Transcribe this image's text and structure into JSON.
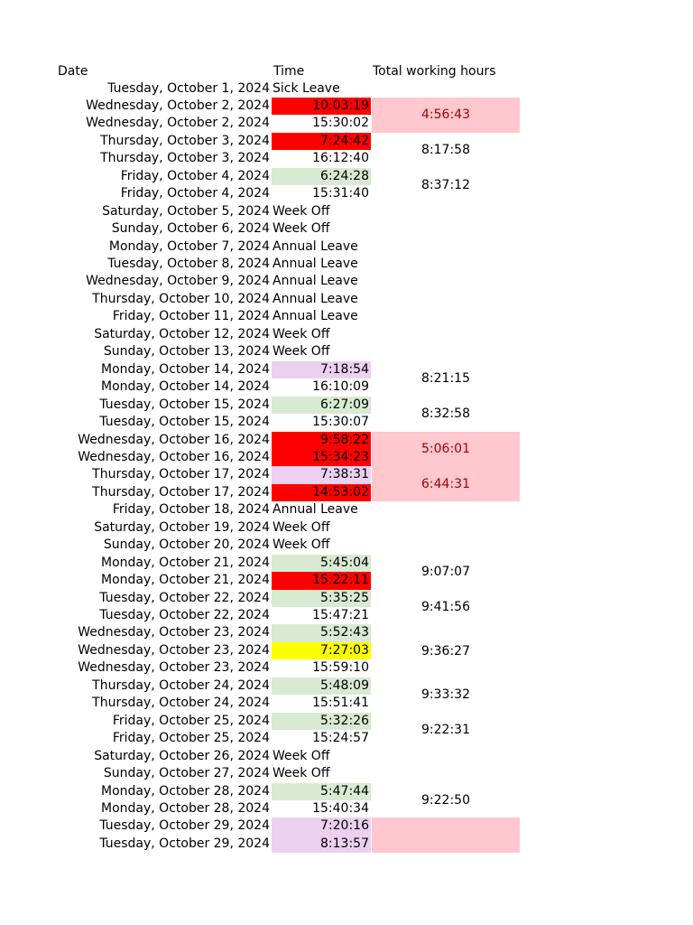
{
  "headers": {
    "date": "Date",
    "time": "Time",
    "total": "Total working hours"
  },
  "colors": {
    "red": "#ff0000",
    "green": "#d9ead3",
    "lavender": "#ecd0ef",
    "yellow": "#ffff00",
    "pink": "#ffc7ce",
    "dark_red_text": "#9c0006"
  },
  "rows": [
    {
      "date": "Tuesday, October 1, 2024",
      "time": "Sick Leave",
      "kind": "txt"
    },
    {
      "date": "Wednesday, October 2, 2024",
      "time": "10:03:19",
      "kind": "num",
      "fill": "red"
    },
    {
      "date": "Wednesday, October 2, 2024",
      "time": "15:30:02",
      "kind": "num"
    },
    {
      "date": "Thursday, October 3, 2024",
      "time": "7:24:42",
      "kind": "num",
      "fill": "red"
    },
    {
      "date": "Thursday, October 3, 2024",
      "time": "16:12:40",
      "kind": "num"
    },
    {
      "date": "Friday, October 4, 2024",
      "time": "6:24:28",
      "kind": "num",
      "fill": "green"
    },
    {
      "date": "Friday, October 4, 2024",
      "time": "15:31:40",
      "kind": "num"
    },
    {
      "date": "Saturday, October 5, 2024",
      "time": "Week Off",
      "kind": "txt"
    },
    {
      "date": "Sunday, October 6, 2024",
      "time": "Week Off",
      "kind": "txt"
    },
    {
      "date": "Monday, October 7, 2024",
      "time": "Annual Leave",
      "kind": "txt"
    },
    {
      "date": "Tuesday, October 8, 2024",
      "time": "Annual Leave",
      "kind": "txt"
    },
    {
      "date": "Wednesday, October 9, 2024",
      "time": "Annual Leave",
      "kind": "txt"
    },
    {
      "date": "Thursday, October 10, 2024",
      "time": "Annual Leave",
      "kind": "txt"
    },
    {
      "date": "Friday, October 11, 2024",
      "time": "Annual Leave",
      "kind": "txt"
    },
    {
      "date": "Saturday, October 12, 2024",
      "time": "Week Off",
      "kind": "txt"
    },
    {
      "date": "Sunday, October 13, 2024",
      "time": "Week Off",
      "kind": "txt"
    },
    {
      "date": "Monday, October 14, 2024",
      "time": "7:18:54",
      "kind": "num",
      "fill": "lavender"
    },
    {
      "date": "Monday, October 14, 2024",
      "time": "16:10:09",
      "kind": "num"
    },
    {
      "date": "Tuesday, October 15, 2024",
      "time": "6:27:09",
      "kind": "num",
      "fill": "green"
    },
    {
      "date": "Tuesday, October 15, 2024",
      "time": "15:30:07",
      "kind": "num"
    },
    {
      "date": "Wednesday, October 16, 2024",
      "time": "9:58:22",
      "kind": "num",
      "fill": "red"
    },
    {
      "date": "Wednesday, October 16, 2024",
      "time": "15:34:23",
      "kind": "num",
      "fill": "red"
    },
    {
      "date": "Thursday, October 17, 2024",
      "time": "7:38:31",
      "kind": "num",
      "fill": "lavender"
    },
    {
      "date": "Thursday, October 17, 2024",
      "time": "14:53:02",
      "kind": "num",
      "fill": "red"
    },
    {
      "date": "Friday, October 18, 2024",
      "time": "Annual Leave",
      "kind": "txt"
    },
    {
      "date": "Saturday, October 19, 2024",
      "time": "Week Off",
      "kind": "txt"
    },
    {
      "date": "Sunday, October 20, 2024",
      "time": "Week Off",
      "kind": "txt"
    },
    {
      "date": "Monday, October 21, 2024",
      "time": "5:45:04",
      "kind": "num",
      "fill": "green"
    },
    {
      "date": "Monday, October 21, 2024",
      "time": "15:22:11",
      "kind": "num",
      "fill": "red"
    },
    {
      "date": "Tuesday, October 22, 2024",
      "time": "5:35:25",
      "kind": "num",
      "fill": "green"
    },
    {
      "date": "Tuesday, October 22, 2024",
      "time": "15:47:21",
      "kind": "num"
    },
    {
      "date": "Wednesday, October 23, 2024",
      "time": "5:52:43",
      "kind": "num",
      "fill": "green"
    },
    {
      "date": "Wednesday, October 23, 2024",
      "time": "7:27:03",
      "kind": "num",
      "fill": "yellow"
    },
    {
      "date": "Wednesday, October 23, 2024",
      "time": "15:59:10",
      "kind": "num"
    },
    {
      "date": "Thursday, October 24, 2024",
      "time": "5:48:09",
      "kind": "num",
      "fill": "green"
    },
    {
      "date": "Thursday, October 24, 2024",
      "time": "15:51:41",
      "kind": "num"
    },
    {
      "date": "Friday, October 25, 2024",
      "time": "5:32:26",
      "kind": "num",
      "fill": "green"
    },
    {
      "date": "Friday, October 25, 2024",
      "time": "15:24:57",
      "kind": "num"
    },
    {
      "date": "Saturday, October 26, 2024",
      "time": "Week Off",
      "kind": "txt"
    },
    {
      "date": "Sunday, October 27, 2024",
      "time": "Week Off",
      "kind": "txt"
    },
    {
      "date": "Monday, October 28, 2024",
      "time": "5:47:44",
      "kind": "num",
      "fill": "green"
    },
    {
      "date": "Monday, October 28, 2024",
      "time": "15:40:34",
      "kind": "num"
    },
    {
      "date": "Tuesday, October 29, 2024",
      "time": "7:20:16",
      "kind": "num",
      "fill": "lavender"
    },
    {
      "date": "Tuesday, October 29, 2024",
      "time": "8:13:57",
      "kind": "num",
      "fill": "lavender"
    }
  ],
  "totals": [
    {
      "value": "4:56:43",
      "rows": [
        1,
        2
      ],
      "fill": "pink",
      "text_color": "dark_red_text"
    },
    {
      "value": "8:17:58",
      "rows": [
        3,
        4
      ]
    },
    {
      "value": "8:37:12",
      "rows": [
        5,
        6
      ]
    },
    {
      "value": "8:21:15",
      "rows": [
        16,
        17
      ]
    },
    {
      "value": "8:32:58",
      "rows": [
        18,
        19
      ]
    },
    {
      "value": "5:06:01",
      "rows": [
        20,
        21
      ],
      "fill": "pink",
      "text_color": "dark_red_text"
    },
    {
      "value": "6:44:31",
      "rows": [
        22,
        23
      ],
      "fill": "pink",
      "text_color": "dark_red_text"
    },
    {
      "value": "9:07:07",
      "rows": [
        27,
        28
      ]
    },
    {
      "value": "9:41:56",
      "rows": [
        29,
        30
      ]
    },
    {
      "value": "9:36:27",
      "rows": [
        31,
        33
      ]
    },
    {
      "value": "9:33:32",
      "rows": [
        34,
        35
      ]
    },
    {
      "value": "9:22:31",
      "rows": [
        36,
        37
      ]
    },
    {
      "value": "9:22:50",
      "rows": [
        40,
        41
      ]
    },
    {
      "value": "",
      "rows": [
        42,
        43
      ],
      "fill": "pink",
      "text_color": "dark_red_text"
    }
  ]
}
